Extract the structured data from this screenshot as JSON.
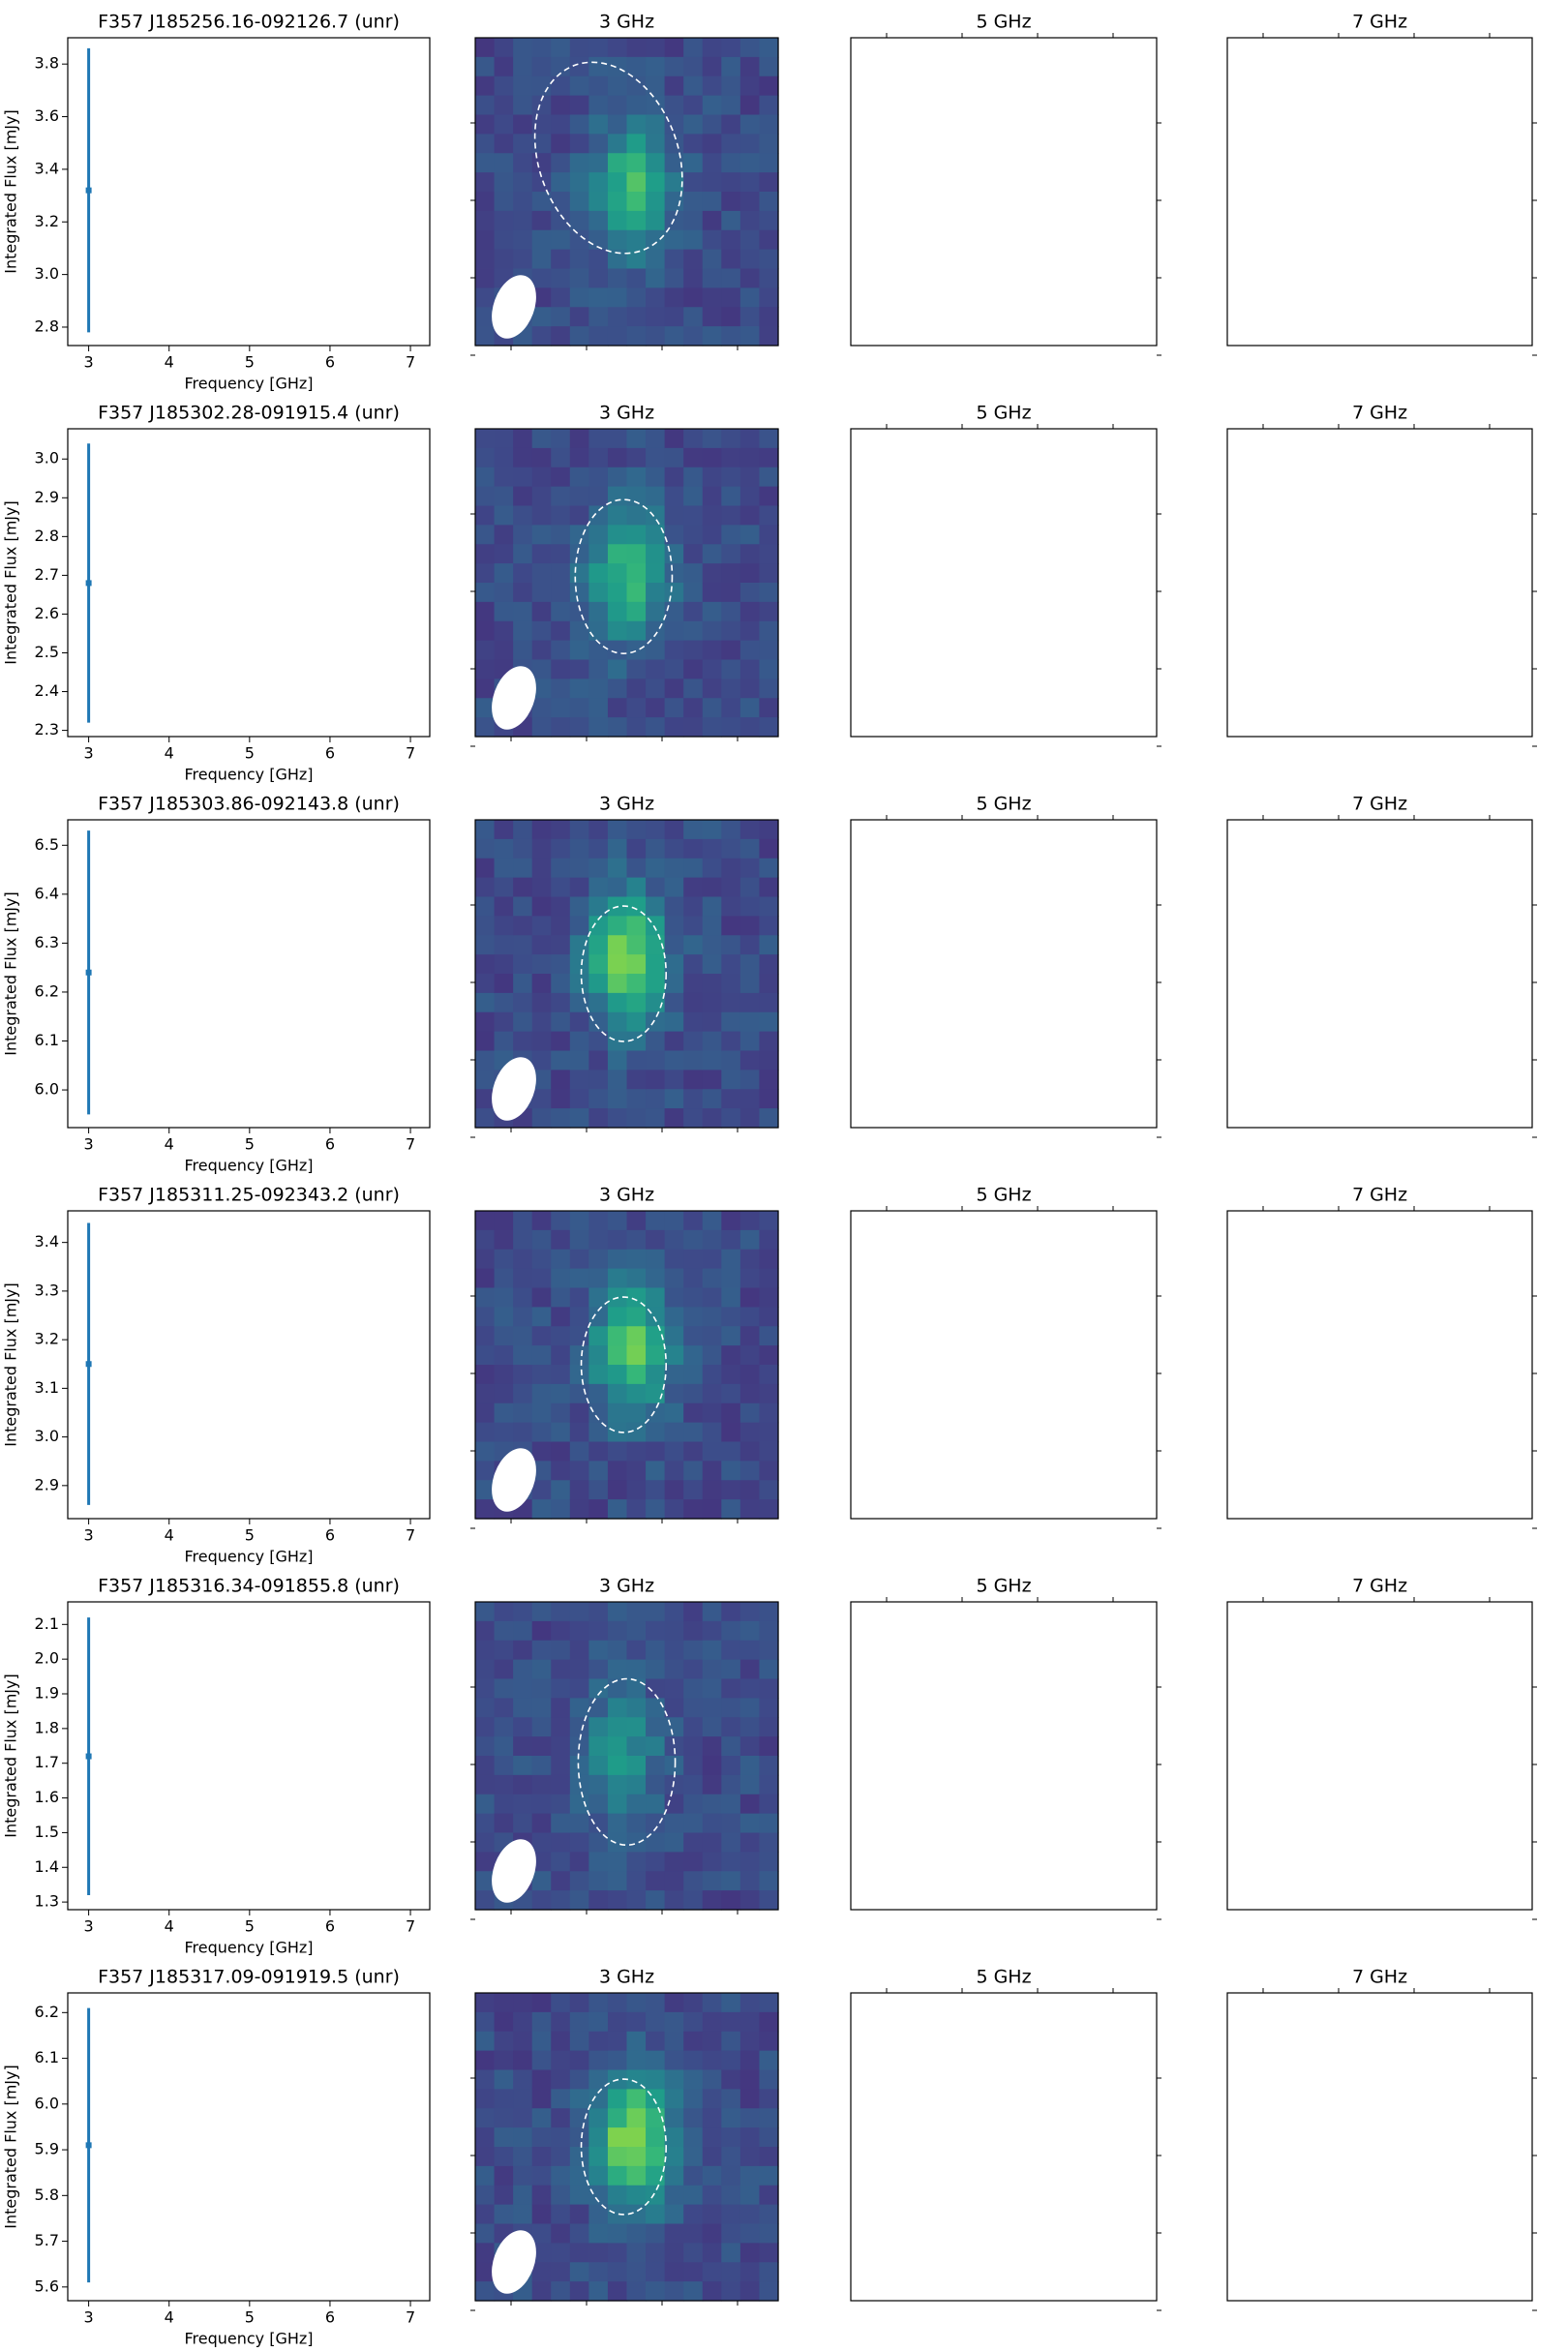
{
  "chart_data": [
    {
      "type": "errorbar",
      "title": "F357 J185256.16-092126.7 (unr)",
      "xlabel": "Frequency [GHz]",
      "ylabel": "Integrated Flux [mJy]",
      "x": [
        3
      ],
      "values": [
        3.32
      ],
      "errors": [
        0.54
      ],
      "color": "#1f77b4",
      "xlim": [
        2.74,
        7.24
      ],
      "ylim": [
        2.73,
        3.9
      ],
      "xticks": [
        3,
        4,
        5,
        6,
        7
      ],
      "yticks": [
        2.8,
        {
          "value": 3,
          "label": "3.0"
        },
        3.2,
        3.4,
        3.6,
        3.8
      ]
    },
    {
      "type": "image",
      "title": "3 GHz"
    },
    {
      "type": "blank",
      "title": "5 GHz"
    },
    {
      "type": "blank",
      "title": "7 GHz"
    },
    {
      "type": "errorbar",
      "title": "F357 J185302.28-091915.4 (unr)",
      "xlabel": "Frequency [GHz]",
      "ylabel": "Integrated Flux [mJy]",
      "x": [
        3
      ],
      "values": [
        2.68
      ],
      "errors": [
        0.36
      ],
      "color": "#1f77b4",
      "xlim": [
        2.74,
        7.24
      ],
      "ylim": [
        2.284,
        3.078
      ],
      "xticks": [
        3,
        4,
        5,
        6,
        7
      ],
      "yticks": [
        2.3,
        2.4,
        2.5,
        2.6,
        2.7,
        2.8,
        2.9,
        {
          "value": 3,
          "label": "3.0"
        }
      ]
    },
    {
      "type": "image",
      "title": "3 GHz"
    },
    {
      "type": "blank",
      "title": "5 GHz"
    },
    {
      "type": "blank",
      "title": "7 GHz"
    },
    {
      "type": "errorbar",
      "title": "F357 J185303.86-092143.8 (unr)",
      "xlabel": "Frequency [GHz]",
      "ylabel": "Integrated Flux [mJy]",
      "x": [
        3
      ],
      "values": [
        6.24
      ],
      "errors": [
        0.29
      ],
      "color": "#1f77b4",
      "xlim": [
        2.74,
        7.24
      ],
      "ylim": [
        5.923,
        6.552
      ],
      "xticks": [
        3,
        4,
        5,
        6,
        7
      ],
      "yticks": [
        {
          "value": 6,
          "label": "6.0"
        },
        6.1,
        6.2,
        6.3,
        6.4,
        6.5
      ]
    },
    {
      "type": "image",
      "title": "3 GHz"
    },
    {
      "type": "blank",
      "title": "5 GHz"
    },
    {
      "type": "blank",
      "title": "7 GHz"
    },
    {
      "type": "errorbar",
      "title": "F357 J185311.25-092343.2 (unr)",
      "xlabel": "Frequency [GHz]",
      "ylabel": "Integrated Flux [mJy]",
      "x": [
        3
      ],
      "values": [
        3.15
      ],
      "errors": [
        0.29
      ],
      "color": "#1f77b4",
      "xlim": [
        2.74,
        7.24
      ],
      "ylim": [
        2.832,
        3.465
      ],
      "xticks": [
        3,
        4,
        5,
        6,
        7
      ],
      "yticks": [
        2.9,
        {
          "value": 3,
          "label": "3.0"
        },
        3.1,
        3.2,
        3.3,
        3.4
      ]
    },
    {
      "type": "image",
      "title": "3 GHz"
    },
    {
      "type": "blank",
      "title": "5 GHz"
    },
    {
      "type": "blank",
      "title": "7 GHz"
    },
    {
      "type": "errorbar",
      "title": "F357 J185316.34-091855.8 (unr)",
      "xlabel": "Frequency [GHz]",
      "ylabel": "Integrated Flux [mJy]",
      "x": [
        3
      ],
      "values": [
        1.72
      ],
      "errors": [
        0.4
      ],
      "color": "#1f77b4",
      "xlim": [
        2.74,
        7.24
      ],
      "ylim": [
        1.278,
        2.165
      ],
      "xticks": [
        3,
        4,
        5,
        6,
        7
      ],
      "yticks": [
        1.3,
        1.4,
        1.5,
        1.6,
        1.7,
        1.8,
        1.9,
        {
          "value": 2,
          "label": "2.0"
        },
        2.1
      ]
    },
    {
      "type": "image",
      "title": "3 GHz"
    },
    {
      "type": "blank",
      "title": "5 GHz"
    },
    {
      "type": "blank",
      "title": "7 GHz"
    },
    {
      "type": "errorbar",
      "title": "F357 J185317.09-091919.5 (unr)",
      "xlabel": "Frequency [GHz]",
      "ylabel": "Integrated Flux [mJy]",
      "x": [
        3
      ],
      "values": [
        5.91
      ],
      "errors": [
        0.3
      ],
      "color": "#1f77b4",
      "xlim": [
        2.74,
        7.24
      ],
      "ylim": [
        5.57,
        6.243
      ],
      "xticks": [
        3,
        4,
        5,
        6,
        7
      ],
      "yticks": [
        5.6,
        5.7,
        5.8,
        5.9,
        {
          "value": 6,
          "label": "6.0"
        },
        6.1,
        6.2
      ]
    },
    {
      "type": "image",
      "title": "3 GHz"
    },
    {
      "type": "blank",
      "title": "5 GHz"
    },
    {
      "type": "blank",
      "title": "7 GHz"
    }
  ]
}
